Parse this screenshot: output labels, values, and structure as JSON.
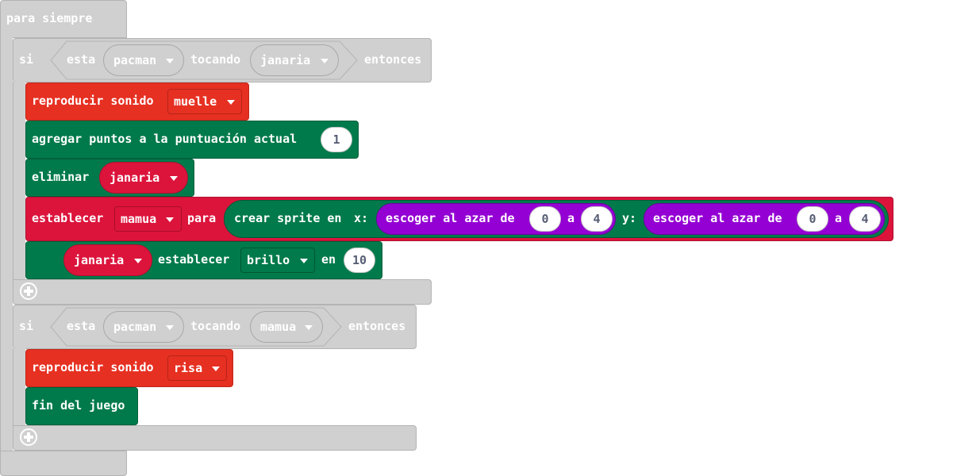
{
  "forever": {
    "label": "para siempre"
  },
  "if1": {
    "si": "si",
    "cond": {
      "esta": "esta",
      "sprite": "pacman",
      "tocando": "tocando",
      "target": "janaria"
    },
    "entonces": "entonces",
    "play_sound": {
      "label": "reproducir sonido",
      "sound": "muelle"
    },
    "add_score": {
      "label": "agregar puntos a la puntuación actual",
      "value": "1"
    },
    "destroy": {
      "label": "eliminar",
      "sprite": "janaria"
    },
    "set_var": {
      "label": "establecer",
      "var": "mamua",
      "para": "para",
      "create": "crear sprite en",
      "x_label": "x:",
      "rand1": "escoger al azar de",
      "x_min": "0",
      "a1": "a",
      "x_max": "4",
      "y_label": "y:",
      "rand2": "escoger al azar de",
      "y_min": "0",
      "a2": "a",
      "y_max": "4"
    },
    "set_prop": {
      "sprite": "janaria",
      "label": "establecer",
      "prop": "brillo",
      "en": "en",
      "value": "10"
    }
  },
  "if2": {
    "si": "si",
    "cond": {
      "esta": "esta",
      "sprite": "pacman",
      "tocando": "tocando",
      "target": "mamua"
    },
    "entonces": "entonces",
    "play_sound": {
      "label": "reproducir sonido",
      "sound": "risa"
    },
    "game_over": {
      "label": "fin del juego"
    }
  },
  "colors": {
    "loops": "#d0d0d0",
    "music": "#e63022",
    "info": "#007a4b",
    "sprites": "#dc143c",
    "math": "#9400d3"
  }
}
